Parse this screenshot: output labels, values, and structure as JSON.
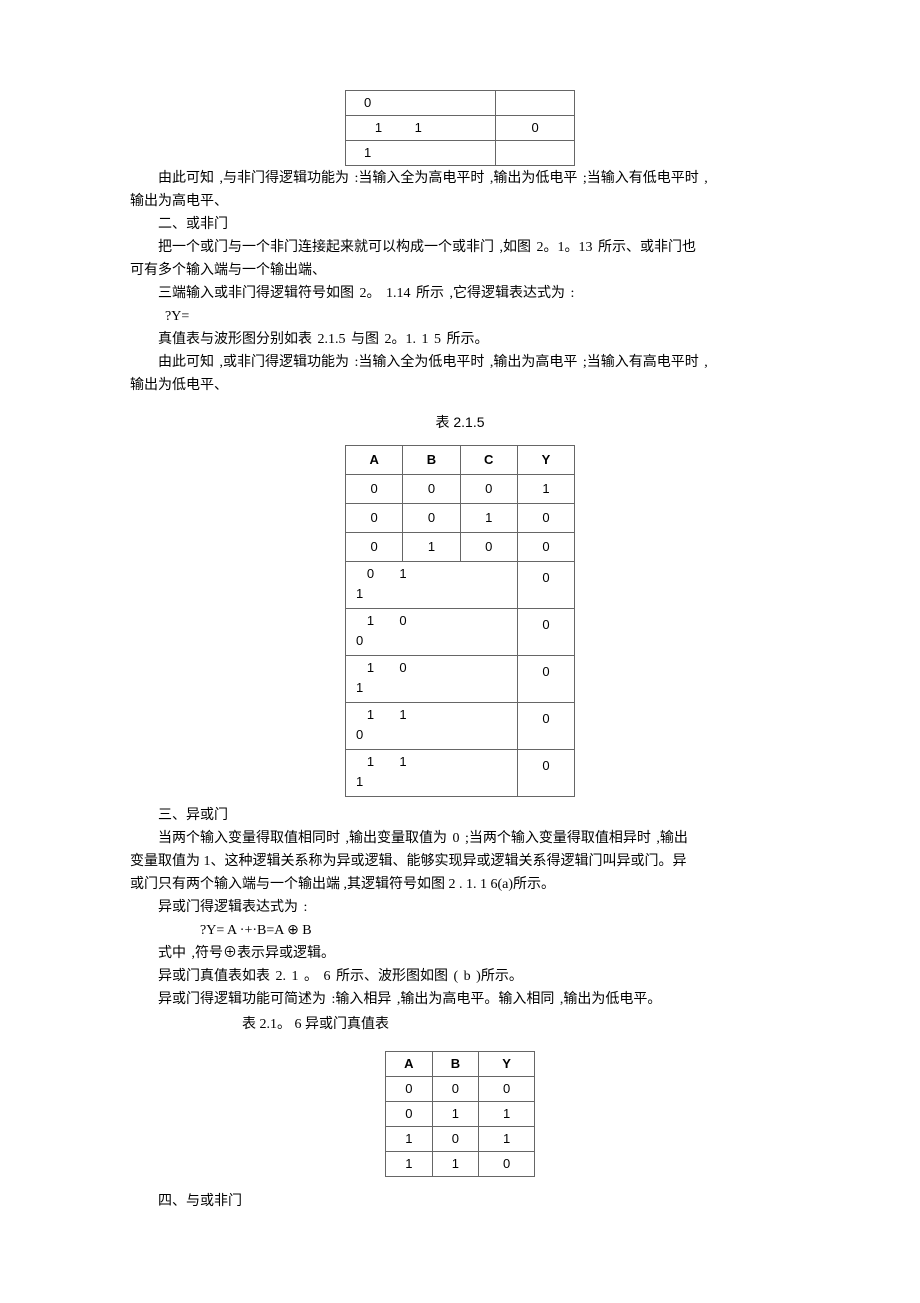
{
  "tables": {
    "top_partial": {
      "rows": [
        [
          "0",
          ""
        ],
        [
          "   1         1",
          "0"
        ],
        [
          "1",
          ""
        ]
      ]
    },
    "nor": {
      "caption": "表 2.1.5",
      "headers": [
        "A",
        "B",
        "C",
        "Y"
      ],
      "rows": [
        {
          "a": "0",
          "b": "0",
          "c": "0",
          "y": "1",
          "tall": false
        },
        {
          "a": "0",
          "b": "0",
          "c": "1",
          "y": "0",
          "tall": false
        },
        {
          "a": "0",
          "b": "1",
          "c": "0",
          "y": "0",
          "tall": false
        },
        {
          "a": "   0",
          "b": "1",
          "c": "",
          "y": "0",
          "tall": true,
          "suffix": "1"
        },
        {
          "a": "   1",
          "b": "0",
          "c": "",
          "y": "0",
          "tall": true,
          "suffix": "0"
        },
        {
          "a": "   1",
          "b": "0",
          "c": "",
          "y": "0",
          "tall": true,
          "suffix": "1"
        },
        {
          "a": "   1",
          "b": "1",
          "c": "",
          "y": "0",
          "tall": true,
          "suffix": "0"
        },
        {
          "a": "   1",
          "b": "1",
          "c": "",
          "y": "0",
          "tall": true,
          "suffix": "1"
        }
      ]
    },
    "xor": {
      "caption": "表 2.1。 6    异或门真值表",
      "headers": [
        "A",
        "B",
        "Y"
      ],
      "rows": [
        [
          "0",
          "0",
          "0"
        ],
        [
          "0",
          "1",
          "1"
        ],
        [
          "1",
          "0",
          "1"
        ],
        [
          "1",
          "1",
          "0"
        ]
      ]
    }
  },
  "text": {
    "p1": "由此可知 ,与非门得逻辑功能为     :当输入全为高电平时     ,输出为低电平  ;当输入有低电平时  ,",
    "p1b": "输出为高电平、",
    "h2": "二、或非门",
    "p2": "把一个或门与一个非门连接起来就可以构成一个或非门         ,如图 2。1。13 所示、或非门也",
    "p2b": "可有多个输入端与一个输出端、",
    "p3": "三端输入或非门得逻辑符号如图       2。 1.14 所示 ,它得逻辑表达式为  :",
    "f1": "?Y=",
    "p4": "真值表与波形图分别如表     2.1.5 与图 2。1. 1 5 所示。",
    "p5": "由此可知 ,或非门得逻辑功能为    :当输入全为低电平时     ,输出为高电平  ;当输入有高电平时  ,",
    "p5b": "输出为低电平、",
    "h3": "三、异或门",
    "p6": "当两个输入变量得取值相同时      ,输出变量取值为 0   ;当两个输入变量得取值相异时     ,输出",
    "p6b": "变量取值为  1、这种逻辑关系称为异或逻辑、能够实现异或逻辑关系得逻辑门叫异或门。异",
    "p6c": "或门只有两个输入端与一个输出端     ,其逻辑符号如图 2 .    1. 1  6(a)所示。",
    "p7": "异或门得逻辑表达式为   :",
    "f2": "?Y= A  ·+·B=A ⊕ B",
    "p8": "式中 ,符号⊕表示异或逻辑。",
    "p9": "异或门真值表如表  2. 1 。 6  所示、波形图如图  ( b )所示。",
    "p10": "异或门得逻辑功能可简述为      :输入相异 ,输出为高电平。输入相同    ,输出为低电平。",
    "h4": "四、与或非门"
  }
}
